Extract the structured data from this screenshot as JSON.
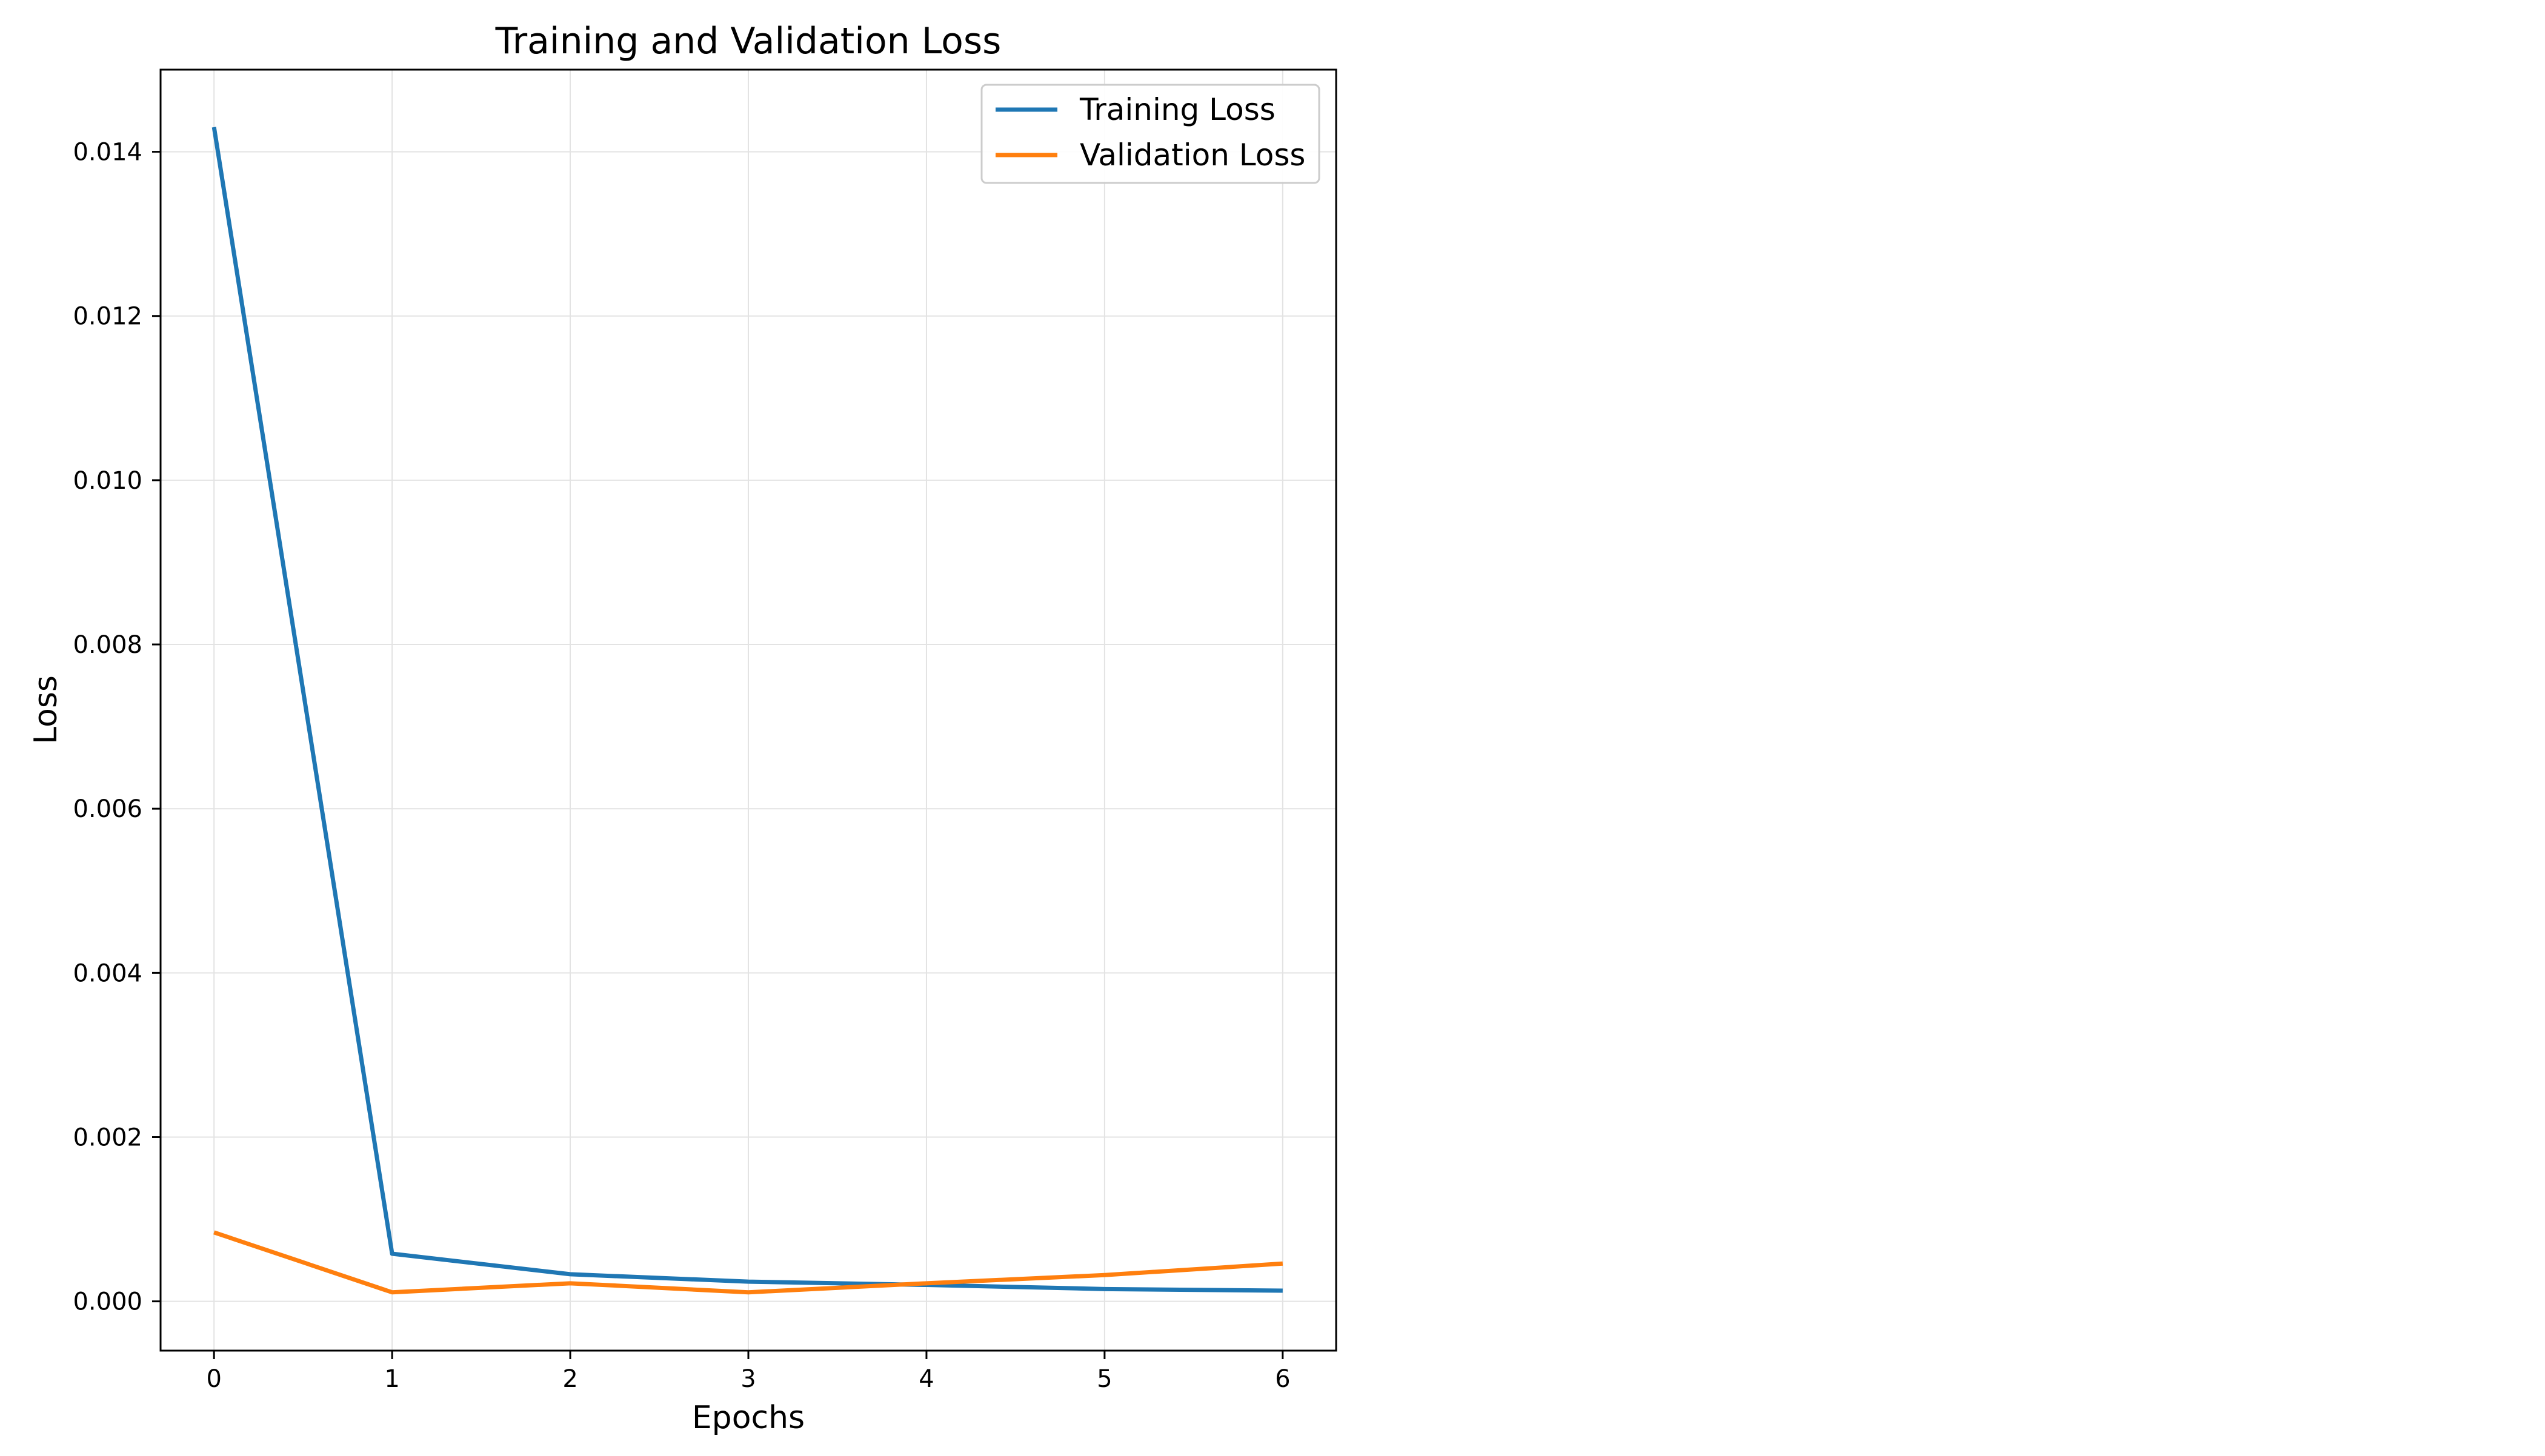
{
  "chart_data": {
    "type": "line",
    "title": "Training and Validation Loss",
    "xlabel": "Epochs",
    "ylabel": "Loss",
    "x": [
      0,
      1,
      2,
      3,
      4,
      5,
      6
    ],
    "xlim": [
      -0.3,
      6.3
    ],
    "ylim": [
      -0.0006,
      0.015
    ],
    "x_ticks": [
      "0",
      "1",
      "2",
      "3",
      "4",
      "5",
      "6"
    ],
    "x_tick_values": [
      0,
      1,
      2,
      3,
      4,
      5,
      6
    ],
    "y_ticks": [
      "0.000",
      "0.002",
      "0.004",
      "0.006",
      "0.008",
      "0.010",
      "0.012",
      "0.014"
    ],
    "y_tick_values": [
      0,
      0.002,
      0.004,
      0.006,
      0.008,
      0.01,
      0.012,
      0.014
    ],
    "grid": true,
    "legend_position": "top-right",
    "series": [
      {
        "name": "Training Loss",
        "color": "#1f77b4",
        "values": [
          0.0143,
          0.00058,
          0.00033,
          0.00024,
          0.0002,
          0.00015,
          0.00013
        ]
      },
      {
        "name": "Validation Loss",
        "color": "#ff7f0e",
        "values": [
          0.00084,
          0.00011,
          0.00022,
          0.00011,
          0.00022,
          0.00032,
          0.00046
        ]
      }
    ]
  }
}
